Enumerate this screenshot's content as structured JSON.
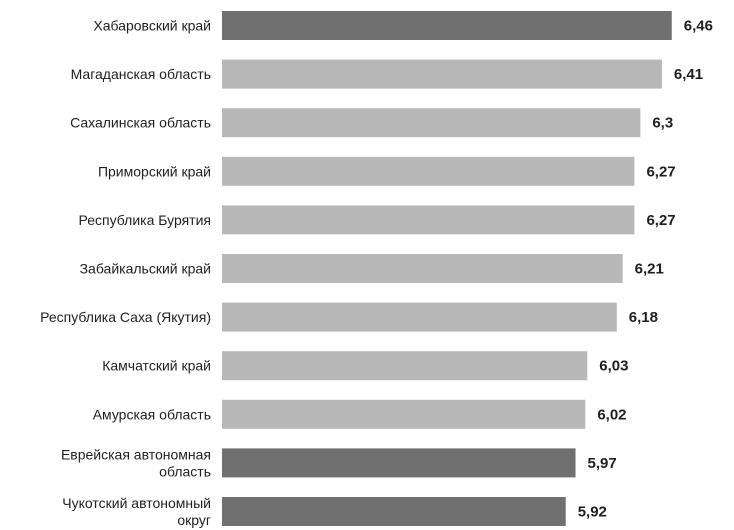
{
  "chart_data": {
    "type": "bar",
    "orientation": "horizontal",
    "categories": [
      "Хабаровский край",
      "Магаданская область",
      "Сахалинская область",
      "Приморский край",
      "Республика Бурятия",
      "Забайкальский край",
      "Республика Саха (Якутия)",
      "Камчатский край",
      "Амурская область",
      "Еврейская автономная область",
      "Чукотский автономный округ"
    ],
    "category_lines": [
      [
        "Хабаровский край"
      ],
      [
        "Магаданская область"
      ],
      [
        "Сахалинская область"
      ],
      [
        "Приморский край"
      ],
      [
        "Республика Бурятия"
      ],
      [
        "Забайкальский край"
      ],
      [
        "Республика Саха (Якутия)"
      ],
      [
        "Камчатский край"
      ],
      [
        "Амурская область"
      ],
      [
        "Еврейская автономная",
        "область"
      ],
      [
        "Чукотский автономный",
        "округ"
      ]
    ],
    "values": [
      6.46,
      6.41,
      6.3,
      6.27,
      6.27,
      6.21,
      6.18,
      6.03,
      6.02,
      5.97,
      5.92
    ],
    "value_labels": [
      "6,46",
      "6,41",
      "6,3",
      "6,27",
      "6,27",
      "6,21",
      "6,18",
      "6,03",
      "6,02",
      "5,97",
      "5,92"
    ],
    "bar_colors": [
      "#707070",
      "#b8b8b8",
      "#b8b8b8",
      "#b8b8b8",
      "#b8b8b8",
      "#b8b8b8",
      "#b8b8b8",
      "#b8b8b8",
      "#b8b8b8",
      "#707070",
      "#707070"
    ],
    "title": "",
    "xlabel": "",
    "ylabel": "",
    "grid": false,
    "legend": "none"
  }
}
